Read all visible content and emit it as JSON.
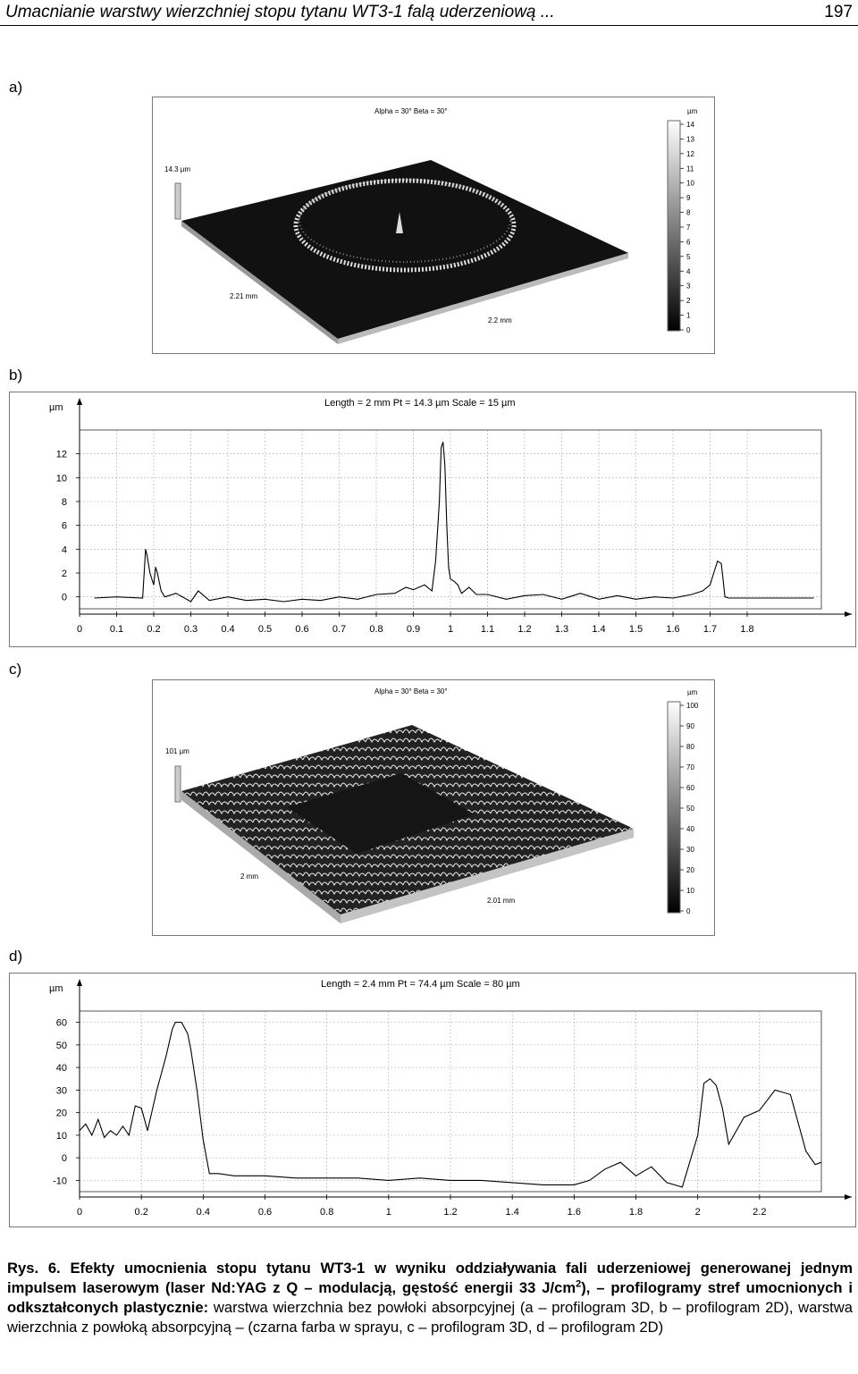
{
  "header": {
    "running_title": "Umacnianie warstwy wierzchniej stopu tytanu WT3-1 falą uderzeniową ...",
    "page_number": "197"
  },
  "panels": {
    "a": {
      "label": "a)",
      "view_angles": "Alpha = 30°      Beta = 30°",
      "z_max": "14.3 µm",
      "dim_left": "2.21 mm",
      "dim_right": "2.2 mm",
      "colorbar_unit": "µm",
      "colorbar_ticks": [
        "14",
        "13",
        "12",
        "11",
        "10",
        "9",
        "8",
        "7",
        "6",
        "5",
        "4",
        "3",
        "2",
        "1",
        "0"
      ]
    },
    "b": {
      "label": "b)",
      "info": "Length = 2 mm   Pt = 14.3 µm   Scale = 15 µm",
      "y_unit": "µm"
    },
    "c": {
      "label": "c)",
      "view_angles": "Alpha = 30°      Beta = 30°",
      "z_max": "101 µm",
      "dim_left": "2 mm",
      "dim_right": "2.01 mm",
      "colorbar_unit": "µm",
      "colorbar_ticks": [
        "100",
        "90",
        "80",
        "70",
        "60",
        "50",
        "40",
        "30",
        "20",
        "10",
        "0"
      ]
    },
    "d": {
      "label": "d)",
      "info": "Length = 2.4 mm   Pt = 74.4 µm   Scale = 80 µm",
      "y_unit": "µm"
    }
  },
  "chart_data": [
    {
      "type": "line",
      "panel": "b",
      "title": "Length = 2 mm   Pt = 14.3 µm   Scale = 15 µm",
      "ylabel": "µm",
      "xlim": [
        0,
        2.0
      ],
      "ylim": [
        -1,
        14
      ],
      "x_ticks": [
        "0",
        "0.1",
        "0.2",
        "0.3",
        "0.4",
        "0.5",
        "0.6",
        "0.7",
        "0.8",
        "0.9",
        "1",
        "1.1",
        "1.2",
        "1.3",
        "1.4",
        "1.5",
        "1.6",
        "1.7",
        "1.8"
      ],
      "y_ticks": [
        "0",
        "2",
        "4",
        "6",
        "8",
        "10",
        "12"
      ],
      "grid": true,
      "series": [
        {
          "x": [
            0.04,
            0.1,
            0.17,
            0.178,
            0.182,
            0.19,
            0.2,
            0.205,
            0.21,
            0.22,
            0.23,
            0.26,
            0.3,
            0.32,
            0.35,
            0.4,
            0.45,
            0.5,
            0.55,
            0.6,
            0.65,
            0.7,
            0.75,
            0.8,
            0.85,
            0.88,
            0.9,
            0.93,
            0.95,
            0.96,
            0.97,
            0.975,
            0.98,
            0.985,
            0.99,
            0.995,
            1.0,
            1.01,
            1.02,
            1.03,
            1.05,
            1.07,
            1.1,
            1.15,
            1.2,
            1.25,
            1.3,
            1.35,
            1.4,
            1.45,
            1.5,
            1.55,
            1.6,
            1.65,
            1.68,
            1.7,
            1.71,
            1.72,
            1.73,
            1.735,
            1.74,
            1.75,
            1.8,
            1.85,
            1.9,
            1.98
          ],
          "y": [
            -0.1,
            0.0,
            -0.1,
            4.0,
            3.5,
            2.0,
            1.0,
            2.5,
            2.0,
            0.5,
            0.0,
            0.3,
            -0.4,
            0.5,
            -0.3,
            0.0,
            -0.3,
            -0.2,
            -0.4,
            -0.2,
            -0.3,
            0.0,
            -0.2,
            0.2,
            0.3,
            0.8,
            0.6,
            1.0,
            0.5,
            3.0,
            8.0,
            12.5,
            13.0,
            11.0,
            6.0,
            2.5,
            1.5,
            1.3,
            1.0,
            0.3,
            0.8,
            0.2,
            0.2,
            -0.2,
            0.1,
            0.2,
            -0.2,
            0.3,
            -0.2,
            0.1,
            -0.2,
            0.0,
            -0.1,
            0.2,
            0.5,
            1.0,
            2.0,
            3.0,
            2.8,
            1.5,
            0.0,
            -0.1,
            -0.1,
            -0.1,
            -0.1,
            -0.1
          ]
        }
      ]
    },
    {
      "type": "line",
      "panel": "d",
      "title": "Length = 2.4 mm   Pt = 74.4 µm   Scale = 80 µm",
      "ylabel": "µm",
      "xlim": [
        0,
        2.4
      ],
      "ylim": [
        -15,
        65
      ],
      "x_ticks": [
        "0",
        "0.2",
        "0.4",
        "0.6",
        "0.8",
        "1",
        "1.2",
        "1.4",
        "1.6",
        "1.8",
        "2",
        "2.2"
      ],
      "y_ticks": [
        "-10",
        "0",
        "10",
        "20",
        "30",
        "40",
        "50",
        "60"
      ],
      "grid": true,
      "series": [
        {
          "x": [
            0.0,
            0.02,
            0.04,
            0.06,
            0.08,
            0.1,
            0.12,
            0.14,
            0.16,
            0.18,
            0.2,
            0.22,
            0.25,
            0.28,
            0.3,
            0.31,
            0.33,
            0.35,
            0.36,
            0.38,
            0.4,
            0.42,
            0.45,
            0.5,
            0.6,
            0.7,
            0.8,
            0.9,
            1.0,
            1.1,
            1.2,
            1.3,
            1.4,
            1.5,
            1.6,
            1.65,
            1.7,
            1.75,
            1.8,
            1.85,
            1.9,
            1.95,
            2.0,
            2.02,
            2.04,
            2.06,
            2.08,
            2.1,
            2.15,
            2.2,
            2.25,
            2.3,
            2.35,
            2.38,
            2.4
          ],
          "y": [
            12,
            15,
            10,
            17,
            9,
            12,
            10,
            14,
            10,
            23,
            22,
            12,
            30,
            45,
            57,
            60,
            60,
            55,
            48,
            30,
            8,
            -7,
            -7,
            -8,
            -8,
            -9,
            -9,
            -9,
            -10,
            -9,
            -10,
            -10,
            -11,
            -12,
            -12,
            -10,
            -5,
            -2,
            -8,
            -4,
            -11,
            -13,
            10,
            33,
            35,
            32,
            22,
            6,
            18,
            21,
            30,
            28,
            3,
            -3,
            -2
          ]
        }
      ]
    }
  ],
  "caption": {
    "lead": "Rys. 6. Efekty umocnienia stopu tytanu WT3-1 w wyniku oddziaływania fali uderzeniowej generowanej jednym impulsem laserowym (laser Nd:YAG z Q – modulacją, gęstość energii 33 J/cm",
    "sup": "2",
    "lead_tail": "), – profilogramy stref umocnionych i odkształconych plastycznie:",
    "rest": " warstwa wierzchnia bez powłoki absorpcyjnej (a – profilogram 3D, b – profilogram 2D), warstwa wierzchnia z powłoką absorpcyjną – (czarna farba w sprayu, c – profilogram 3D, d – profilogram 2D)"
  }
}
